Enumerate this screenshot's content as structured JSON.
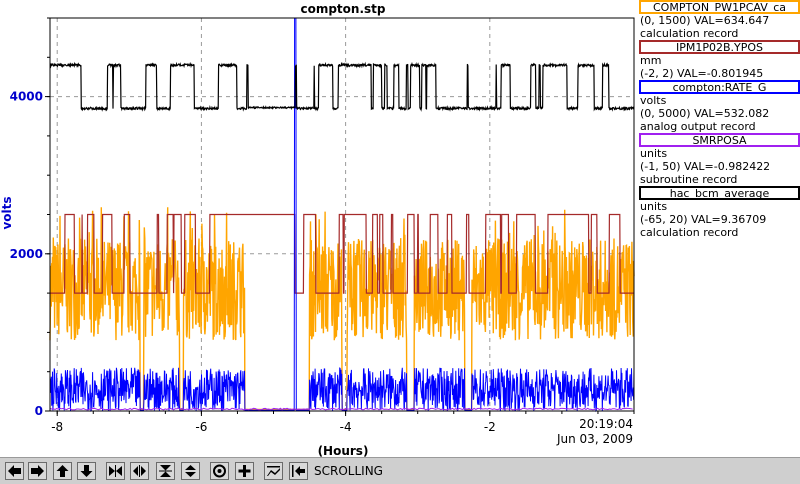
{
  "chart_data": {
    "type": "line",
    "title": "compton.stp",
    "xlabel": "(Hours)",
    "ylabel": "volts",
    "xlim": [
      -8.1,
      0
    ],
    "ylim": [
      0,
      5000
    ],
    "x_ticks": [
      "-8",
      "-6",
      "-4",
      "-2"
    ],
    "x_tick_values": [
      -8,
      -6,
      -4,
      -2
    ],
    "y_ticks": [
      "0",
      "2000",
      "4000"
    ],
    "y_tick_values": [
      0,
      2000,
      4000
    ],
    "end_time": "20:19:04",
    "end_date": "Jun 03, 2009",
    "grid": true,
    "series": [
      {
        "name": "COMPTON_PW1PCAV_ca",
        "color": "#ffa500",
        "description": "noisy spiky band ~900-2400 volts-scale with gaps near -5.4 to -4.5 h and -3.1 h, -2.3 h"
      },
      {
        "name": "IPM1P02B.YPOS",
        "color": "#a52a2a",
        "description": "square wave between ~1500 and ~2500 on volts scale"
      },
      {
        "name": "compton:RATE_G",
        "color": "#0000ff",
        "description": "noisy band ~0-550 volts, spike to 5000 near -4.7 h"
      },
      {
        "name": "SMRPOSA",
        "color": "#a020f0",
        "description": "near zero"
      },
      {
        "name": "hac_bcm_average",
        "color": "#000000",
        "description": "square wave between ~3850 and ~4400 on volts scale"
      }
    ]
  },
  "legend": [
    {
      "name": "COMPTON_PW1PCAV_ca",
      "color": "#ffa500",
      "range": "(0, 1500) VAL=634.647",
      "units": "",
      "record": "calculation record"
    },
    {
      "name": "IPM1P02B.YPOS",
      "color": "#a52a2a",
      "range": "(-2, 2) VAL=-0.801945",
      "units": "mm",
      "record": ""
    },
    {
      "name": "compton:RATE_G",
      "color": "#0000ff",
      "range": "(0, 5000) VAL=532.082",
      "units": "volts",
      "record": "analog output record"
    },
    {
      "name": "SMRPOSA",
      "color": "#a020f0",
      "range": "(-1, 50) VAL=-0.982422",
      "units": "units",
      "record": "subroutine record"
    },
    {
      "name": "hac_bcm_average",
      "color": "#000000",
      "range": "(-65, 20) VAL=9.36709",
      "units": "units",
      "record": "calculation record"
    }
  ],
  "toolbar": {
    "status": "SCROLLING",
    "buttons": [
      "pan-left-icon",
      "pan-right-icon",
      "pan-up-icon",
      "pan-down-icon",
      "zoom-in-horizontal-icon",
      "zoom-out-horizontal-icon",
      "zoom-in-vertical-icon",
      "zoom-out-vertical-icon",
      "auto-scale-icon",
      "reset-icon",
      "toggle-style-icon",
      "scroll-icon"
    ]
  }
}
